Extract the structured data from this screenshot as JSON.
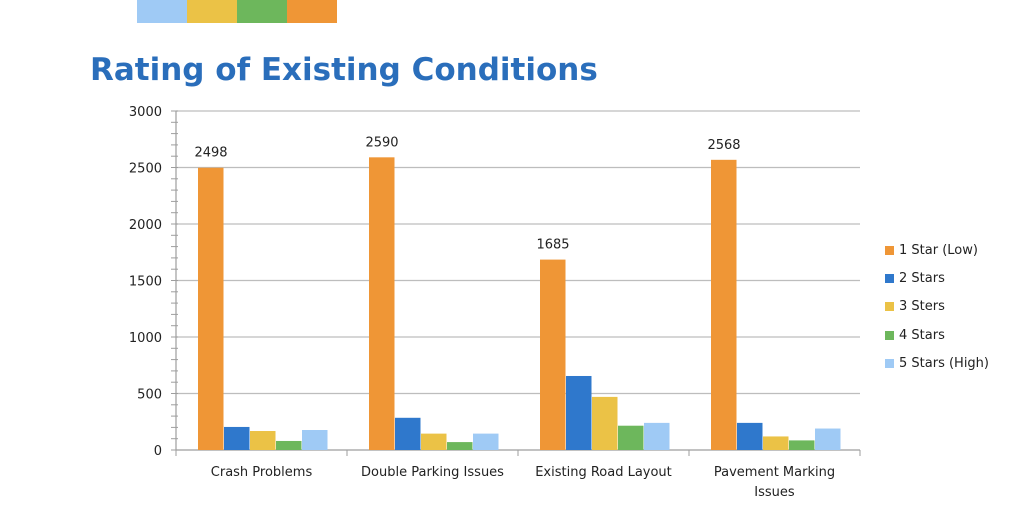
{
  "header": {
    "swatch_colors": [
      "#9fcaf5",
      "#ebc246",
      "#6db75c",
      "#ef9636"
    ]
  },
  "chart_data": {
    "type": "bar",
    "title": "Rating of Existing Conditions",
    "title_color": "#2a6ebb",
    "xlabel": "",
    "ylabel": "",
    "ylim": [
      0,
      3000
    ],
    "yticks": [
      0,
      500,
      1000,
      1500,
      2000,
      2500,
      3000
    ],
    "grid": true,
    "legend_position": "right",
    "categories": [
      "Crash Problems",
      "Double Parking Issues",
      "Existing Road Layout",
      "Pavement Marking Issues"
    ],
    "category_lines": [
      [
        "Crash Problems"
      ],
      [
        "Double Parking Issues"
      ],
      [
        "Existing Road Layout"
      ],
      [
        "Pavement Marking",
        "Issues"
      ]
    ],
    "series": [
      {
        "name": "1 Star (Low)",
        "color": "#ef9636",
        "values": [
          2498,
          2590,
          1685,
          2568
        ],
        "labels": [
          "2498",
          "2590",
          "1685",
          "2568"
        ]
      },
      {
        "name": "2 Stars",
        "color": "#2f78cc",
        "values": [
          204,
          285,
          655,
          240
        ]
      },
      {
        "name": "3 Sters",
        "color": "#ebc246",
        "values": [
          168,
          145,
          470,
          120
        ]
      },
      {
        "name": "4 Stars",
        "color": "#6db75c",
        "values": [
          80,
          70,
          215,
          85
        ]
      },
      {
        "name": "5 Stars (High)",
        "color": "#9fcaf5",
        "values": [
          177,
          145,
          240,
          190
        ]
      }
    ]
  }
}
